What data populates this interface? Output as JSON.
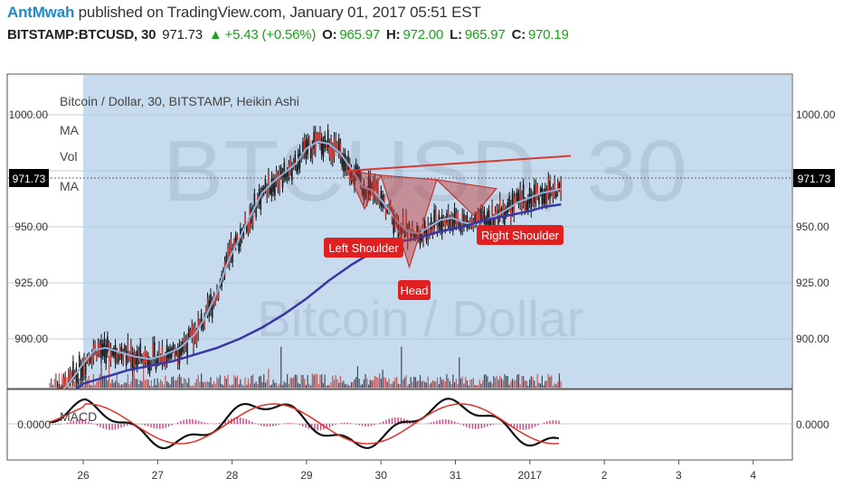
{
  "header": {
    "author": "AntMwah",
    "published": " published on TradingView.com, January 01, 2017 05:51 EST",
    "symbol": "BITSTAMP:BTCUSD, 30",
    "last": "971.73",
    "change": "+5.43 (+0.56%)",
    "o_label": "O:",
    "o_value": "965.97",
    "h_label": "H:",
    "h_value": "972.00",
    "l_label": "L:",
    "l_value": "965.97",
    "c_label": "C:",
    "c_value": "970.19"
  },
  "watermark": {
    "symbol": "BTCUSD, 30",
    "name": "Bitcoin / Dollar"
  },
  "legend": {
    "title": "Bitcoin / Dollar, 30, BITSTAMP, Heikin Ashi",
    "items": [
      "MA",
      "Vol",
      "MA"
    ]
  },
  "macd_label": "MACD",
  "annotations": {
    "left_shoulder": "Left Shoulder",
    "head": "Head",
    "right_shoulder": "Right Shoulder"
  },
  "colors": {
    "panel_bg": "#c3d9ed",
    "ma_fast": "#8fb4e0",
    "ma_slow": "#3a36a8",
    "pattern": "#c0342e",
    "label_bg": "#e02020",
    "macd_line": "#111111",
    "signal_line": "#e0302c",
    "hist": "#d04a8a"
  },
  "chart_data": {
    "type": "line",
    "title": "Bitcoin / Dollar, 30, BITSTAMP, Heikin Ashi",
    "x_ticks": [
      "26",
      "27",
      "28",
      "29",
      "30",
      "31",
      "2017",
      "2",
      "3",
      "4"
    ],
    "y_ticks": [
      1000.0,
      975.0,
      950.0,
      925.0,
      900.0
    ],
    "y_tick_labels": [
      "1000.00",
      "950.00",
      "925.00",
      "900.00"
    ],
    "ylim": [
      871,
      1016
    ],
    "last_price": 971.73,
    "last_price_label": "971.73",
    "macd_zero_label": "0.0000",
    "series": [
      {
        "name": "MA",
        "x": [
          25.55,
          25.7,
          25.85,
          26.0,
          26.15,
          26.3,
          26.5,
          26.7,
          26.9,
          27.1,
          27.3,
          27.5,
          27.65,
          27.8,
          27.95,
          28.1,
          28.25,
          28.4,
          28.55,
          28.7,
          28.85,
          29.0,
          29.15,
          29.3,
          29.45,
          29.6,
          29.75,
          29.9,
          30.05,
          30.2,
          30.35,
          30.5,
          30.65,
          30.8,
          30.95,
          31.1,
          31.25,
          31.4,
          31.55,
          31.7,
          31.85,
          32.0,
          32.15,
          32.3,
          32.42
        ],
        "values": [
          872,
          876,
          882,
          889,
          895,
          896,
          894,
          892,
          891,
          893,
          896,
          902,
          910,
          921,
          935,
          945,
          955,
          965,
          970,
          974,
          978,
          985,
          988,
          987,
          983,
          976,
          968,
          966,
          960,
          953,
          948,
          947,
          950,
          953,
          954,
          952,
          951,
          953,
          955,
          958,
          961,
          963,
          965,
          966,
          967
        ]
      },
      {
        "name": "MA",
        "x": [
          25.55,
          25.8,
          26.0,
          26.3,
          26.6,
          26.9,
          27.2,
          27.5,
          27.8,
          28.1,
          28.4,
          28.7,
          29.0,
          29.3,
          29.6,
          29.9,
          30.2,
          30.5,
          30.8,
          31.1,
          31.4,
          31.7,
          32.0,
          32.2,
          32.42
        ],
        "values": [
          870,
          875,
          880,
          883,
          886,
          888,
          890,
          893,
          896,
          900,
          905,
          911,
          918,
          926,
          933,
          939,
          943,
          945,
          948,
          950,
          953,
          955,
          957,
          959,
          960
        ]
      },
      {
        "name": "Left Shoulder",
        "x": [
          29.55,
          29.78,
          30.0
        ],
        "values": [
          975,
          958,
          973
        ]
      },
      {
        "name": "Head",
        "x": [
          30.0,
          30.38,
          30.75
        ],
        "values": [
          973,
          932,
          971
        ]
      },
      {
        "name": "Right Shoulder",
        "x": [
          30.75,
          31.25,
          31.55
        ],
        "values": [
          971,
          955,
          967
        ]
      },
      {
        "name": "Neckline",
        "x": [
          29.55,
          32.55
        ],
        "values": [
          975,
          976
        ]
      }
    ]
  }
}
